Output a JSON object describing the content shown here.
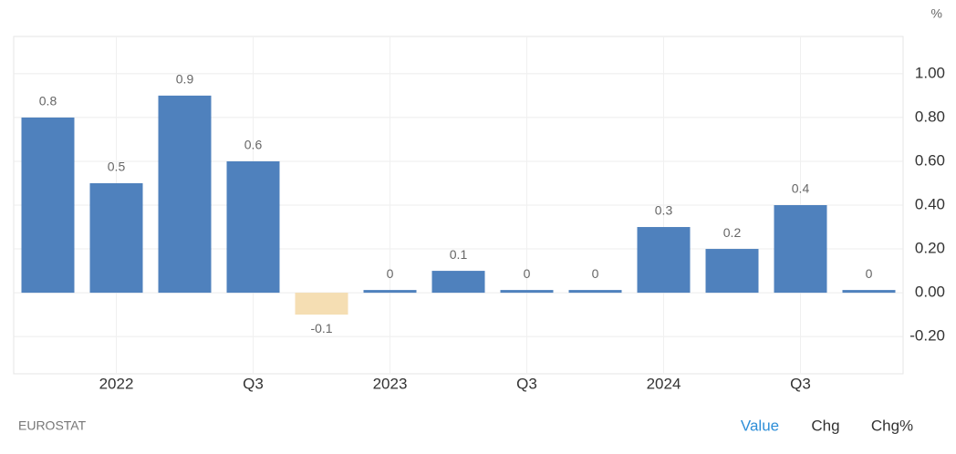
{
  "chart_data": {
    "type": "bar",
    "unit": "%",
    "categories": [
      null,
      "2022",
      null,
      "Q3",
      null,
      "2023",
      null,
      "Q3",
      null,
      "2024",
      null,
      "Q3",
      null
    ],
    "values": [
      0.8,
      0.5,
      0.9,
      0.6,
      -0.1,
      0,
      0.1,
      0,
      0,
      0.3,
      0.2,
      0.4,
      0
    ],
    "color": "#4f81bd",
    "negative_color": "#f5deb3",
    "ylim": [
      -0.37,
      1.17
    ],
    "yticks": [
      {
        "value": -0.2,
        "label": "-0.20"
      },
      {
        "value": 0,
        "label": "0.00"
      },
      {
        "value": 0.2,
        "label": "0.20"
      },
      {
        "value": 0.4,
        "label": "0.40"
      },
      {
        "value": 0.6,
        "label": "0.60"
      },
      {
        "value": 0.8,
        "label": "0.80"
      },
      {
        "value": 1.0,
        "label": "1.00"
      }
    ],
    "grid": true,
    "source": "EUROSTAT",
    "buttons": [
      "Value",
      "Chg",
      "Chg%"
    ]
  }
}
